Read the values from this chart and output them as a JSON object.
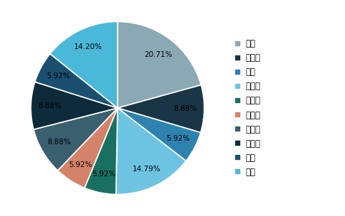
{
  "labels": [
    "珍琦",
    "白十字",
    "可靠",
    "帮大人",
    "千芝雅",
    "安尔康",
    "倍舒特",
    "可爱帮",
    "互帮",
    "其他"
  ],
  "values": [
    20.71,
    8.88,
    5.92,
    14.79,
    5.92,
    5.92,
    8.88,
    8.88,
    5.92,
    14.2
  ],
  "colors": [
    "#8ba8b5",
    "#1a3545",
    "#2e82b0",
    "#6dc4e2",
    "#1a7060",
    "#d4836a",
    "#3a5f6e",
    "#0d2b3a",
    "#1a4f70",
    "#4ab8d8"
  ],
  "startangle": 90,
  "bg_color": "#ffffff",
  "text_color": "#000000",
  "pct_fontsize": 7.5,
  "legend_fontsize": 8.5,
  "edgecolor": "#ffffff",
  "linewidth": 1.2
}
